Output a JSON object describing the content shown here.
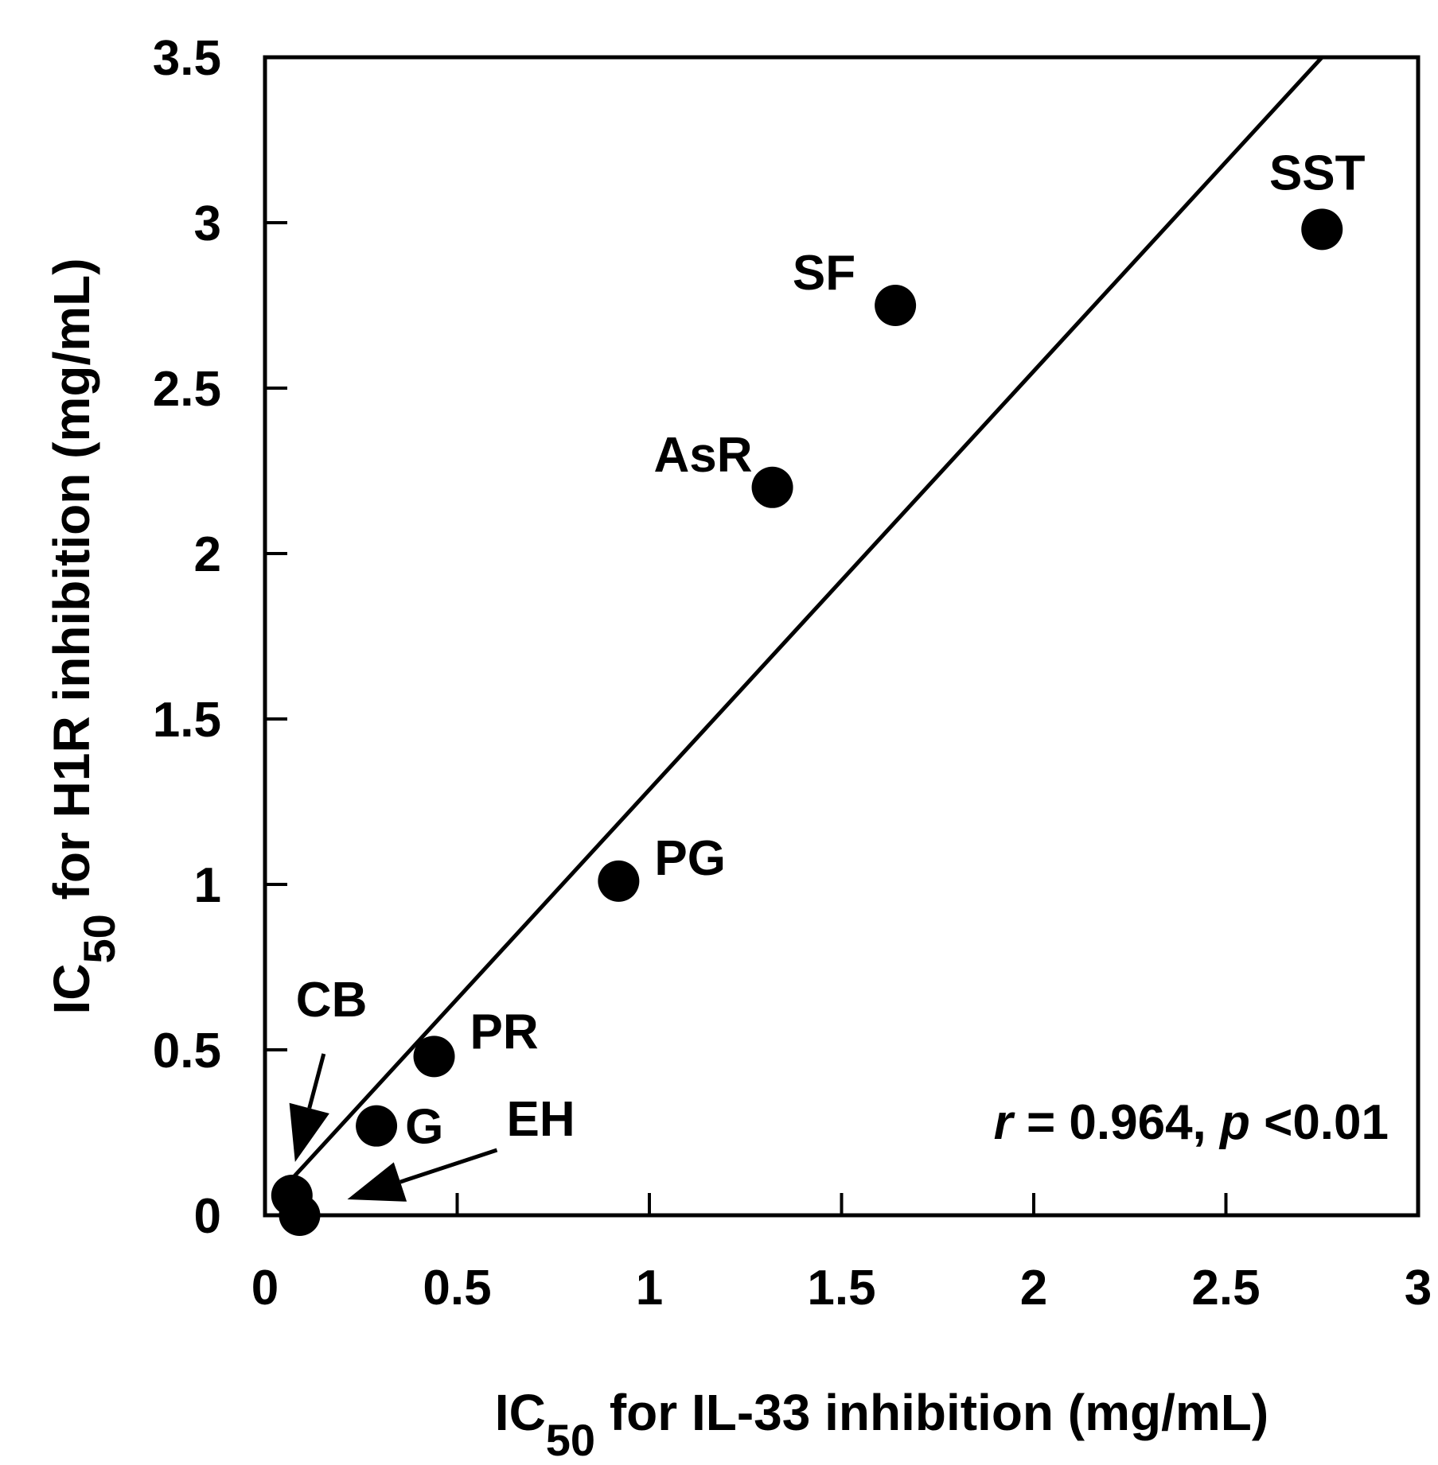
{
  "chart_data": {
    "type": "scatter",
    "title": "",
    "xlabel": {
      "main": "IC",
      "sub": "50",
      "rest": " for IL-33 inhibition (mg/mL)"
    },
    "ylabel": {
      "main": "IC",
      "sub": "50",
      "rest": " for H1R inhibition (mg/mL)"
    },
    "xlim": [
      0,
      3
    ],
    "ylim": [
      0,
      3.5
    ],
    "xticks": [
      {
        "value": 0,
        "label": "0"
      },
      {
        "value": 0.5,
        "label": "0.5"
      },
      {
        "value": 1,
        "label": "1"
      },
      {
        "value": 1.5,
        "label": "1.5"
      },
      {
        "value": 2,
        "label": "2"
      },
      {
        "value": 2.5,
        "label": "2.5"
      },
      {
        "value": 3,
        "label": "3"
      }
    ],
    "yticks": [
      {
        "value": 0,
        "label": "0"
      },
      {
        "value": 0.5,
        "label": "0.5"
      },
      {
        "value": 1,
        "label": "1"
      },
      {
        "value": 1.5,
        "label": "1.5"
      },
      {
        "value": 2,
        "label": "2"
      },
      {
        "value": 2.5,
        "label": "2.5"
      },
      {
        "value": 3,
        "label": "3"
      },
      {
        "value": 3.5,
        "label": "3.5"
      }
    ],
    "grid": false,
    "points": [
      {
        "label": "CB",
        "x": 0.07,
        "y": 0.06
      },
      {
        "label": "EH",
        "x": 0.09,
        "y": 0.0
      },
      {
        "label": "G",
        "x": 0.29,
        "y": 0.27
      },
      {
        "label": "PR",
        "x": 0.44,
        "y": 0.48
      },
      {
        "label": "PG",
        "x": 0.92,
        "y": 1.01
      },
      {
        "label": "AsR",
        "x": 1.32,
        "y": 2.2
      },
      {
        "label": "SF",
        "x": 1.64,
        "y": 2.75
      },
      {
        "label": "SST",
        "x": 2.75,
        "y": 2.98
      }
    ],
    "regression_line": {
      "x1": 0.07,
      "y1": 0.11,
      "x2": 2.75,
      "y2": 3.5
    },
    "annotation": {
      "r_symbol": "r",
      "r_text": " = 0.964, ",
      "p_symbol": "p",
      "p_text": " <0.01"
    }
  }
}
